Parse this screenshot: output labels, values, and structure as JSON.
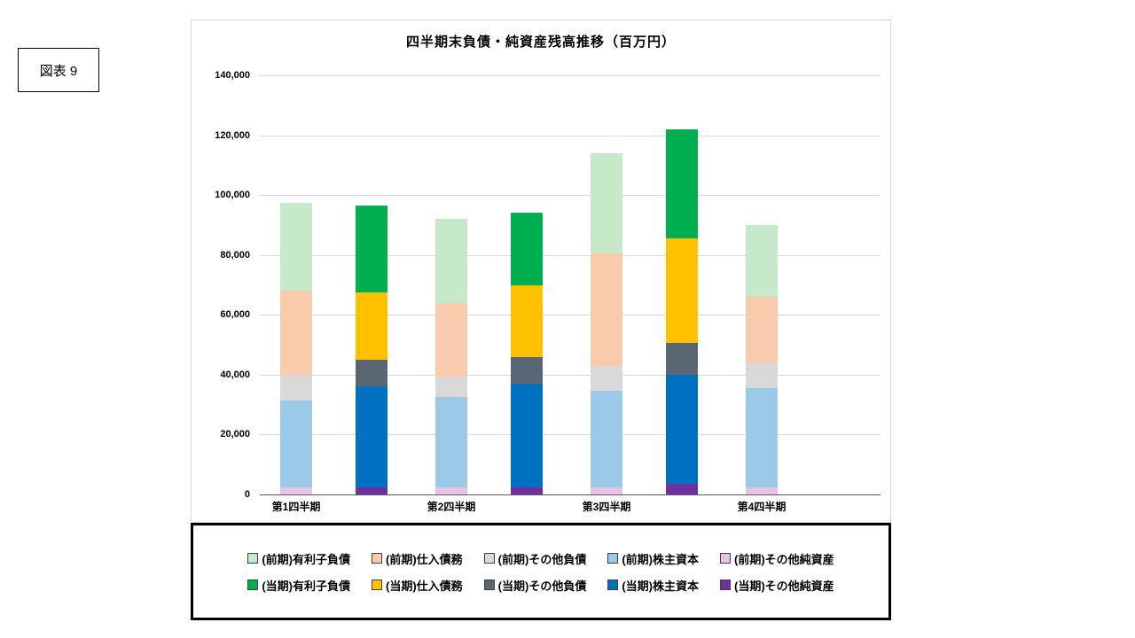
{
  "figure_label": "図表 9",
  "chart_data": {
    "type": "bar",
    "stacked": true,
    "title": "四半期末負債・純資産残高推移（百万円）",
    "categories": [
      "第1四半期",
      "第2四半期",
      "第3四半期",
      "第4四半期"
    ],
    "ylim": [
      0,
      140000
    ],
    "ytick_values": [
      0,
      20000,
      40000,
      60000,
      80000,
      100000,
      120000,
      140000
    ],
    "ytick_labels": [
      "0",
      "20,000",
      "40,000",
      "60,000",
      "80,000",
      "100,000",
      "120,000",
      "140,000"
    ],
    "grid": true,
    "legend_position": "bottom",
    "bar_groups": [
      "前期",
      "当期"
    ],
    "series": [
      {
        "group": "前期",
        "label": "(前期)有利子負債",
        "color": "#c6e9c9",
        "values": [
          29500,
          28000,
          33500,
          24000
        ]
      },
      {
        "group": "前期",
        "label": "(前期)仕入債務",
        "color": "#f8cbad",
        "values": [
          28000,
          24500,
          37500,
          22000
        ]
      },
      {
        "group": "前期",
        "label": "(前期)その他負債",
        "color": "#d9d9d9",
        "values": [
          8500,
          7000,
          8500,
          8500
        ]
      },
      {
        "group": "前期",
        "label": "(前期)株主資本",
        "color": "#9bc9e8",
        "values": [
          29000,
          30000,
          32000,
          33000
        ]
      },
      {
        "group": "前期",
        "label": "(前期)その他純資産",
        "color": "#e6c3e4",
        "values": [
          2500,
          2500,
          2500,
          2500
        ]
      },
      {
        "group": "当期",
        "label": "(当期)有利子負債",
        "color": "#00b050",
        "values": [
          29000,
          24000,
          36500,
          0
        ]
      },
      {
        "group": "当期",
        "label": "(当期)仕入債務",
        "color": "#ffc000",
        "values": [
          22500,
          24000,
          35000,
          0
        ]
      },
      {
        "group": "当期",
        "label": "(当期)その他負債",
        "color": "#5a6673",
        "values": [
          9000,
          9000,
          10500,
          0
        ]
      },
      {
        "group": "当期",
        "label": "(当期)株主資本",
        "color": "#0070c0",
        "values": [
          33500,
          34500,
          36500,
          0
        ]
      },
      {
        "group": "当期",
        "label": "(当期)その他純資産",
        "color": "#7030a0",
        "values": [
          2500,
          2500,
          3500,
          0
        ]
      }
    ]
  }
}
